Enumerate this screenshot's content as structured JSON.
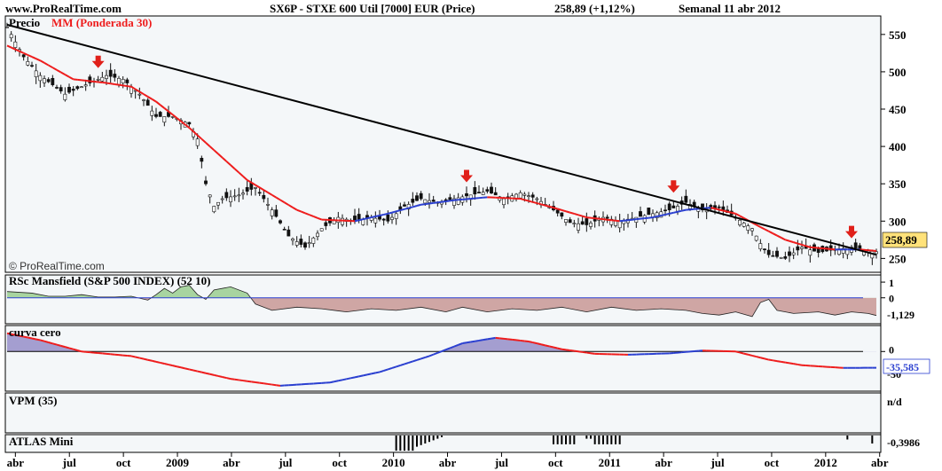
{
  "header": {
    "site": "www.ProRealTime.com",
    "title": "SX6P - STXE 600 Util [7000] EUR (Price)",
    "price_change": "258,89 (+1,12%)",
    "period": "Semanal 11 abr 2012"
  },
  "watermark": "© ProRealTime.com",
  "colors": {
    "panel_bg": "#f4f7f9",
    "ma_up": "#2a3fd0",
    "ma_down": "#ee1c1c",
    "trendline": "#000000",
    "rsc_positive": "#a8d4a0",
    "rsc_negative": "#cfa6a4",
    "curva_positive": "#a49ed0",
    "price_badge": "#ffe27a",
    "arrow": "#e0201a",
    "candle": "#111111"
  },
  "chart_data": [
    {
      "panel": "price",
      "type": "candlestick",
      "legend": [
        "Precio",
        "MM (Ponderada 30)"
      ],
      "y_ticks": [
        550,
        500,
        450,
        400,
        350,
        300,
        250
      ],
      "ylim": [
        235,
        570
      ],
      "last_value": "258,89",
      "x_ticks": [
        "abr",
        "jul",
        "oct",
        "2009",
        "abr",
        "jul",
        "oct",
        "2010",
        "abr",
        "jul",
        "oct",
        "2011",
        "abr",
        "jul",
        "oct",
        "2012",
        "abr"
      ],
      "weeks": 210,
      "close_path": [
        [
          0,
          560
        ],
        [
          4,
          520
        ],
        [
          8,
          495
        ],
        [
          14,
          470
        ],
        [
          20,
          485
        ],
        [
          24,
          495
        ],
        [
          28,
          490
        ],
        [
          32,
          470
        ],
        [
          36,
          440
        ],
        [
          40,
          440
        ],
        [
          44,
          430
        ],
        [
          46,
          410
        ],
        [
          48,
          350
        ],
        [
          50,
          320
        ],
        [
          52,
          330
        ],
        [
          56,
          335
        ],
        [
          60,
          345
        ],
        [
          64,
          315
        ],
        [
          68,
          280
        ],
        [
          72,
          265
        ],
        [
          76,
          290
        ],
        [
          80,
          305
        ],
        [
          84,
          300
        ],
        [
          88,
          305
        ],
        [
          92,
          300
        ],
        [
          96,
          320
        ],
        [
          100,
          330
        ],
        [
          104,
          325
        ],
        [
          108,
          330
        ],
        [
          112,
          335
        ],
        [
          116,
          340
        ],
        [
          120,
          330
        ],
        [
          124,
          338
        ],
        [
          128,
          330
        ],
        [
          132,
          315
        ],
        [
          136,
          298
        ],
        [
          140,
          295
        ],
        [
          144,
          305
        ],
        [
          148,
          300
        ],
        [
          152,
          305
        ],
        [
          156,
          310
        ],
        [
          160,
          315
        ],
        [
          164,
          325
        ],
        [
          168,
          315
        ],
        [
          172,
          318
        ],
        [
          176,
          305
        ],
        [
          180,
          290
        ],
        [
          182,
          270
        ],
        [
          184,
          255
        ],
        [
          188,
          250
        ],
        [
          192,
          265
        ],
        [
          196,
          258
        ],
        [
          200,
          262
        ],
        [
          204,
          265
        ],
        [
          208,
          260
        ],
        [
          210,
          259
        ]
      ],
      "ma_path": [
        [
          0,
          535
        ],
        [
          8,
          515
        ],
        [
          16,
          490
        ],
        [
          24,
          485
        ],
        [
          30,
          480
        ],
        [
          36,
          460
        ],
        [
          44,
          425
        ],
        [
          52,
          385
        ],
        [
          58,
          355
        ],
        [
          64,
          335
        ],
        [
          70,
          315
        ],
        [
          76,
          302
        ],
        [
          84,
          300
        ],
        [
          92,
          310
        ],
        [
          100,
          322
        ],
        [
          108,
          328
        ],
        [
          116,
          332
        ],
        [
          124,
          330
        ],
        [
          132,
          318
        ],
        [
          140,
          305
        ],
        [
          148,
          300
        ],
        [
          156,
          305
        ],
        [
          164,
          315
        ],
        [
          170,
          318
        ],
        [
          176,
          310
        ],
        [
          182,
          292
        ],
        [
          188,
          275
        ],
        [
          194,
          265
        ],
        [
          200,
          262
        ],
        [
          206,
          262
        ],
        [
          210,
          260
        ]
      ],
      "trendline": [
        [
          0,
          563
        ],
        [
          210,
          255
        ]
      ],
      "arrows": [
        {
          "week": 22,
          "price": 505
        },
        {
          "week": 111,
          "price": 352
        },
        {
          "week": 161,
          "price": 338
        },
        {
          "week": 204,
          "price": 277
        }
      ]
    },
    {
      "panel": "rsc",
      "type": "area",
      "title": "RSc Mansfield (S&P 500 INDEX) (52 10)",
      "y_ticks": [
        1,
        0
      ],
      "last_value": "-1,129",
      "ylim": [
        -1.6,
        1.4
      ],
      "path": [
        [
          0,
          0.4
        ],
        [
          6,
          0.3
        ],
        [
          10,
          0.1
        ],
        [
          14,
          0.1
        ],
        [
          18,
          0.2
        ],
        [
          22,
          0.05
        ],
        [
          26,
          0.05
        ],
        [
          30,
          0.1
        ],
        [
          34,
          -0.15
        ],
        [
          36,
          0.2
        ],
        [
          38,
          0.6
        ],
        [
          40,
          0.3
        ],
        [
          42,
          0.7
        ],
        [
          44,
          0.8
        ],
        [
          46,
          0.2
        ],
        [
          48,
          -0.1
        ],
        [
          50,
          0.5
        ],
        [
          54,
          0.7
        ],
        [
          58,
          0.3
        ],
        [
          60,
          -0.4
        ],
        [
          64,
          -0.8
        ],
        [
          70,
          -0.6
        ],
        [
          76,
          -0.7
        ],
        [
          82,
          -0.9
        ],
        [
          88,
          -0.7
        ],
        [
          94,
          -0.8
        ],
        [
          100,
          -0.6
        ],
        [
          106,
          -0.9
        ],
        [
          110,
          -0.6
        ],
        [
          116,
          -0.9
        ],
        [
          122,
          -0.7
        ],
        [
          128,
          -0.8
        ],
        [
          134,
          -0.6
        ],
        [
          140,
          -0.9
        ],
        [
          146,
          -0.6
        ],
        [
          152,
          -0.8
        ],
        [
          158,
          -0.7
        ],
        [
          164,
          -0.8
        ],
        [
          168,
          -1.0
        ],
        [
          172,
          -1.1
        ],
        [
          176,
          -0.9
        ],
        [
          180,
          -1.2
        ],
        [
          182,
          -0.3
        ],
        [
          184,
          -0.1
        ],
        [
          186,
          -0.8
        ],
        [
          190,
          -1.0
        ],
        [
          196,
          -0.9
        ],
        [
          200,
          -1.1
        ],
        [
          204,
          -0.9
        ],
        [
          208,
          -1.0
        ],
        [
          210,
          -1.13
        ]
      ]
    },
    {
      "panel": "curva",
      "type": "line",
      "title": "curva cero",
      "y_ticks": [
        0
      ],
      "extra_tick": "-50",
      "last_value": "-35,585",
      "ylim": [
        -85,
        55
      ],
      "path": [
        [
          0,
          40
        ],
        [
          8,
          25
        ],
        [
          18,
          0
        ],
        [
          30,
          -10
        ],
        [
          42,
          -35
        ],
        [
          54,
          -60
        ],
        [
          66,
          -75
        ],
        [
          78,
          -68
        ],
        [
          90,
          -45
        ],
        [
          102,
          -10
        ],
        [
          110,
          18
        ],
        [
          118,
          30
        ],
        [
          126,
          22
        ],
        [
          134,
          5
        ],
        [
          142,
          -5
        ],
        [
          150,
          -7
        ],
        [
          160,
          -4
        ],
        [
          168,
          2
        ],
        [
          176,
          0
        ],
        [
          184,
          -18
        ],
        [
          192,
          -30
        ],
        [
          202,
          -36
        ],
        [
          210,
          -35.6
        ]
      ]
    },
    {
      "panel": "vpm",
      "type": "line",
      "title": "VPM (35)",
      "last_value": "n/d"
    },
    {
      "panel": "atlas",
      "type": "bar",
      "title": "ATLAS Mini",
      "last_value": "-0,3986",
      "bars": [
        [
          94,
          0.95
        ],
        [
          95,
          0.95
        ],
        [
          96,
          0.95
        ],
        [
          97,
          0.95
        ],
        [
          98,
          0.95
        ],
        [
          99,
          0.7
        ],
        [
          100,
          0.6
        ],
        [
          101,
          0.5
        ],
        [
          102,
          0.4
        ],
        [
          103,
          0.3
        ],
        [
          104,
          0.2
        ],
        [
          105,
          0.1
        ],
        [
          132,
          0.55
        ],
        [
          133,
          0.55
        ],
        [
          134,
          0.55
        ],
        [
          135,
          0.55
        ],
        [
          136,
          0.55
        ],
        [
          137,
          0.55
        ],
        [
          140,
          0.2
        ],
        [
          141,
          0.2
        ],
        [
          142,
          0.55
        ],
        [
          143,
          0.55
        ],
        [
          144,
          0.55
        ],
        [
          145,
          0.55
        ],
        [
          146,
          0.55
        ],
        [
          147,
          0.55
        ],
        [
          148,
          0.55
        ],
        [
          203,
          0.25
        ],
        [
          209,
          0.5
        ]
      ]
    }
  ]
}
